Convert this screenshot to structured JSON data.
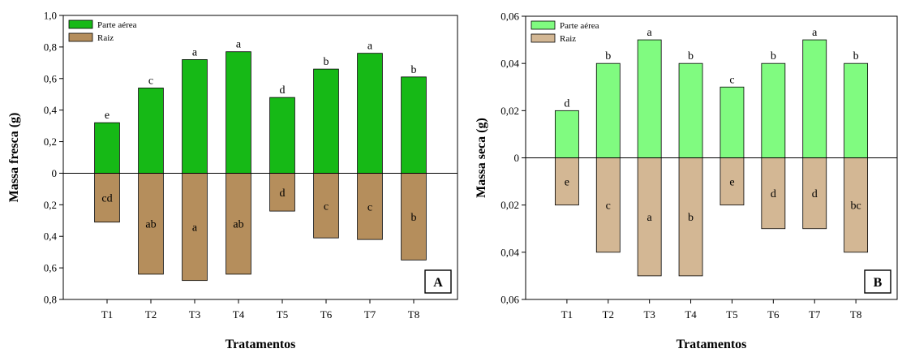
{
  "chart_data": [
    {
      "type": "bar",
      "panel_label": "A",
      "xlabel": "Tratamentos",
      "ylabel": "Massa fresca (g)",
      "categories": [
        "T1",
        "T2",
        "T3",
        "T4",
        "T5",
        "T6",
        "T7",
        "T8"
      ],
      "ylim": [
        -0.8,
        1.0
      ],
      "yticks": [
        {
          "value": 1.0,
          "label": "1,0"
        },
        {
          "value": 0.8,
          "label": "0,8"
        },
        {
          "value": 0.6,
          "label": "0,6"
        },
        {
          "value": 0.4,
          "label": "0,4"
        },
        {
          "value": 0.2,
          "label": "0,2"
        },
        {
          "value": 0,
          "label": "0"
        },
        {
          "value": -0.2,
          "label": "0,2"
        },
        {
          "value": -0.4,
          "label": "0,4"
        },
        {
          "value": -0.6,
          "label": "0,6"
        },
        {
          "value": -0.8,
          "label": "0,8"
        }
      ],
      "legend_position": "top-left",
      "series": [
        {
          "name": "Parte aérea",
          "color": "#16b916",
          "values": [
            0.32,
            0.54,
            0.72,
            0.77,
            0.48,
            0.66,
            0.76,
            0.61
          ],
          "labels": [
            "e",
            "c",
            "a",
            "a",
            "d",
            "b",
            "a",
            "b"
          ]
        },
        {
          "name": "Raiz",
          "color": "#b58e5c",
          "values": [
            -0.31,
            -0.64,
            -0.68,
            -0.64,
            -0.24,
            -0.41,
            -0.42,
            -0.55
          ],
          "labels": [
            "cd",
            "ab",
            "a",
            "ab",
            "d",
            "c",
            "c",
            "b"
          ]
        }
      ]
    },
    {
      "type": "bar",
      "panel_label": "B",
      "xlabel": "Tratamentos",
      "ylabel": "Massa seca (g)",
      "categories": [
        "T1",
        "T2",
        "T3",
        "T4",
        "T5",
        "T6",
        "T7",
        "T8"
      ],
      "ylim": [
        -0.06,
        0.06
      ],
      "yticks": [
        {
          "value": 0.06,
          "label": "0,06"
        },
        {
          "value": 0.04,
          "label": "0,04"
        },
        {
          "value": 0.02,
          "label": "0,02"
        },
        {
          "value": 0,
          "label": "0"
        },
        {
          "value": -0.02,
          "label": "0,02"
        },
        {
          "value": -0.04,
          "label": "0,04"
        },
        {
          "value": -0.06,
          "label": "0,06"
        }
      ],
      "legend_position": "top-left",
      "series": [
        {
          "name": "Parte aérea",
          "color": "#80fb80",
          "values": [
            0.02,
            0.04,
            0.05,
            0.04,
            0.03,
            0.04,
            0.05,
            0.04
          ],
          "labels": [
            "d",
            "b",
            "a",
            "b",
            "c",
            "b",
            "a",
            "b"
          ]
        },
        {
          "name": "Raiz",
          "color": "#d3b794",
          "values": [
            -0.02,
            -0.04,
            -0.05,
            -0.05,
            -0.02,
            -0.03,
            -0.03,
            -0.04
          ],
          "labels": [
            "e",
            "c",
            "a",
            "b",
            "e",
            "d",
            "d",
            "bc"
          ]
        }
      ]
    }
  ]
}
